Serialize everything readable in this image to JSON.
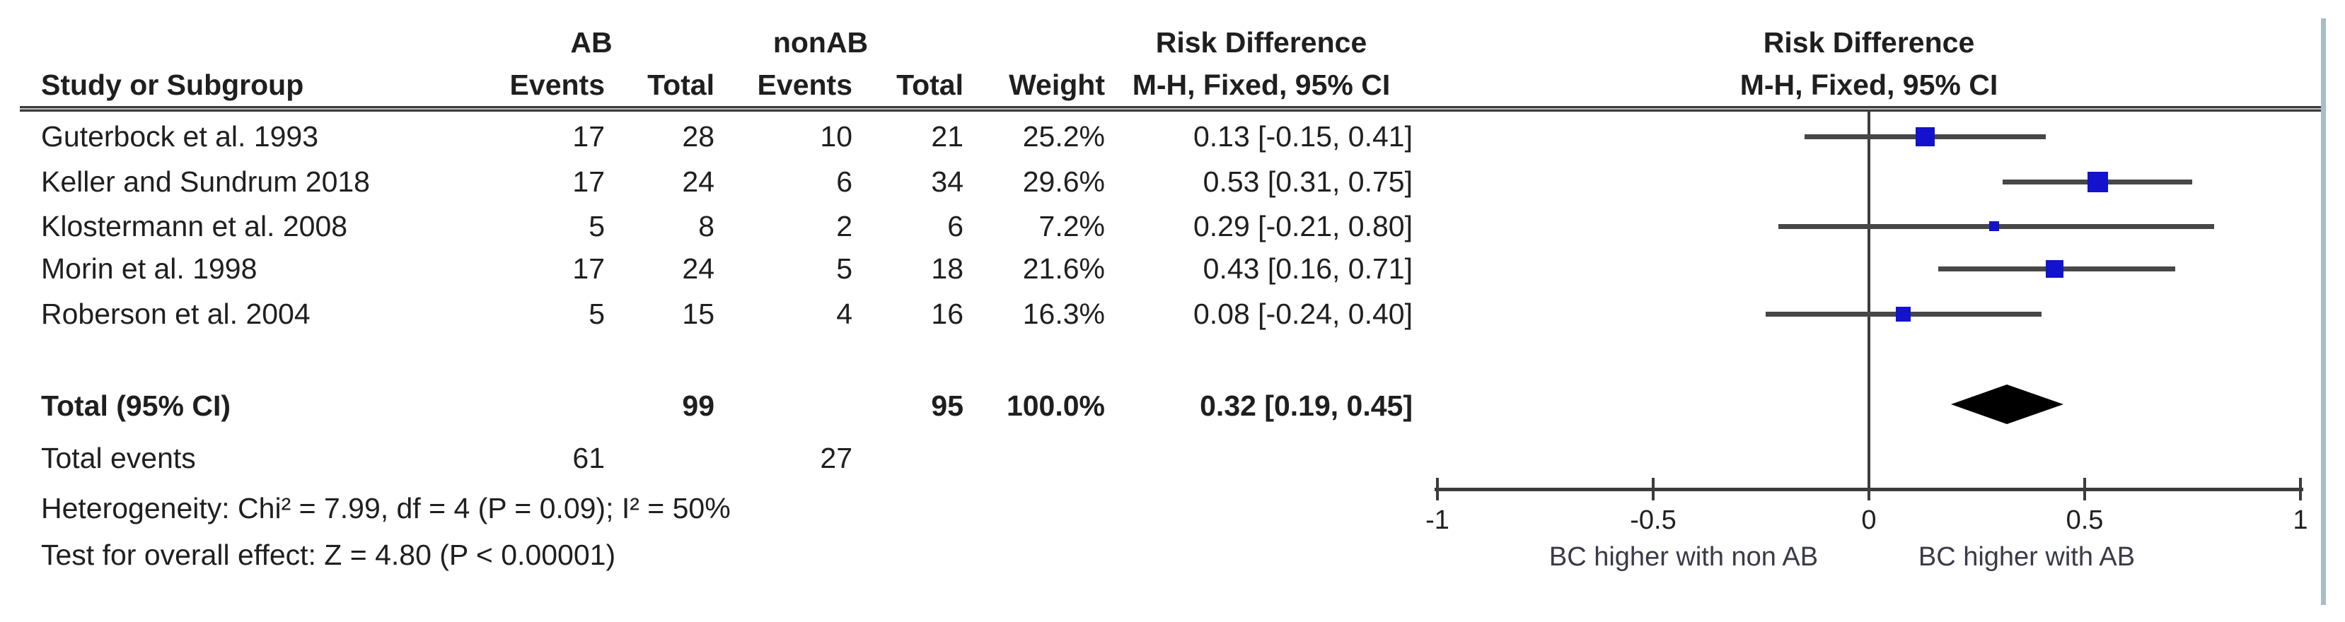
{
  "table": {
    "group1_label": "AB",
    "group2_label": "nonAB",
    "headers": {
      "study": "Study or Subgroup",
      "events1": "Events",
      "total1": "Total",
      "events2": "Events",
      "total2": "Total",
      "weight": "Weight"
    },
    "effect_header": {
      "line1": "Risk Difference",
      "line2": "M-H, Fixed, 95% CI"
    },
    "plot_header": {
      "line1": "Risk Difference",
      "line2": "M-H, Fixed, 95% CI"
    },
    "total_row": {
      "label": "Total (95% CI)",
      "total1": "99",
      "total2": "95",
      "weight": "100.0%",
      "effect": "0.32 [0.19, 0.45]"
    },
    "total_events_row": {
      "label": "Total events",
      "events1": "61",
      "events2": "27"
    },
    "heterogeneity": "Heterogeneity: Chi² = 7.99, df = 4 (P = 0.09); I² = 50%",
    "overall_effect": "Test for overall effect: Z = 4.80 (P < 0.00001)"
  },
  "chart_data": {
    "type": "forest",
    "effect_measure": "Risk Difference",
    "method": "M-H, Fixed, 95% CI",
    "x_axis": {
      "min": -1,
      "max": 1,
      "ticks": [
        -1,
        -0.5,
        0,
        0.5,
        1
      ],
      "tick_labels": [
        "-1",
        "-0.5",
        "0",
        "0.5",
        "1"
      ]
    },
    "direction_labels": {
      "left": "BC higher with non AB",
      "right": "BC higher with AB"
    },
    "studies": [
      {
        "name": "Guterbock et al. 1993",
        "events1": "17",
        "total1": "28",
        "events2": "10",
        "total2": "21",
        "weight": "25.2%",
        "weight_value": 25.2,
        "effect_label": "0.13 [-0.15, 0.41]",
        "rd": 0.13,
        "ci_low": -0.15,
        "ci_high": 0.41
      },
      {
        "name": "Keller and Sundrum 2018",
        "events1": "17",
        "total1": "24",
        "events2": "6",
        "total2": "34",
        "weight": "29.6%",
        "weight_value": 29.6,
        "effect_label": "0.53 [0.31, 0.75]",
        "rd": 0.53,
        "ci_low": 0.31,
        "ci_high": 0.75
      },
      {
        "name": "Klostermann et al. 2008",
        "events1": "5",
        "total1": "8",
        "events2": "2",
        "total2": "6",
        "weight": "7.2%",
        "weight_value": 7.2,
        "effect_label": "0.29 [-0.21, 0.80]",
        "rd": 0.29,
        "ci_low": -0.21,
        "ci_high": 0.8
      },
      {
        "name": "Morin et al. 1998",
        "events1": "17",
        "total1": "24",
        "events2": "5",
        "total2": "18",
        "weight": "21.6%",
        "weight_value": 21.6,
        "effect_label": "0.43 [0.16, 0.71]",
        "rd": 0.43,
        "ci_low": 0.16,
        "ci_high": 0.71
      },
      {
        "name": "Roberson et al. 2004",
        "events1": "5",
        "total1": "15",
        "events2": "4",
        "total2": "16",
        "weight": "16.3%",
        "weight_value": 16.3,
        "effect_label": "0.08 [-0.24, 0.40]",
        "rd": 0.08,
        "ci_low": -0.24,
        "ci_high": 0.4
      }
    ],
    "total": {
      "rd": 0.32,
      "ci_low": 0.19,
      "ci_high": 0.45
    },
    "colors": {
      "marker": "#1412cd",
      "ci_line": "#474747",
      "diamond": "#000000",
      "axis": "#3c3c3c"
    }
  }
}
